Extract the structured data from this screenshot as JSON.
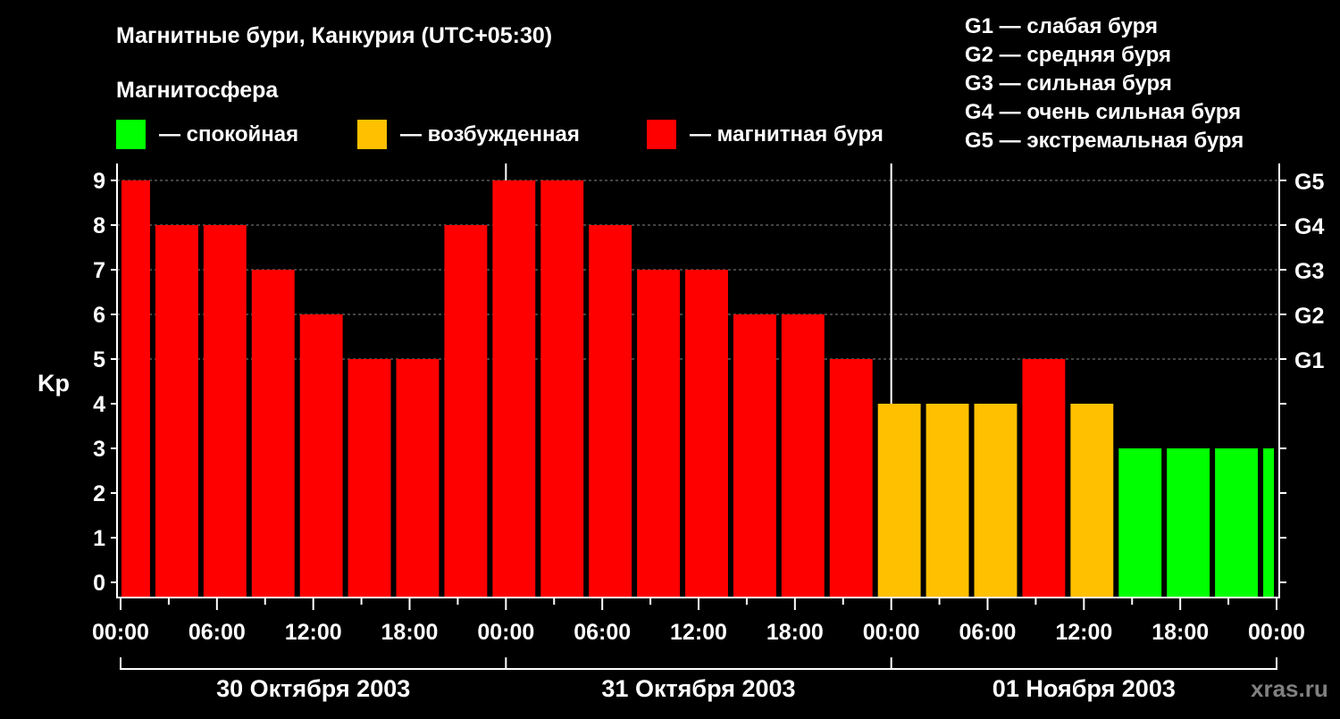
{
  "chart_data": {
    "type": "bar",
    "title": "Магнитные бури, Канкурия (UTC+05:30)",
    "legend_title": "Магнитосфера",
    "legend": [
      {
        "label": "— спокойная",
        "color": "#00ff00"
      },
      {
        "label": "— возбужденная",
        "color": "#ffc000"
      },
      {
        "label": "— магнитная буря",
        "color": "#ff0000"
      }
    ],
    "g_legend": [
      "G1 — слабая буря",
      "G2 — средняя буря",
      "G3 — сильная буря",
      "G4 — очень сильная буря",
      "G5 — экстремальная буря"
    ],
    "ylabel": "Kp",
    "ylim": [
      0,
      9
    ],
    "yticks": [
      "0",
      "1",
      "2",
      "3",
      "4",
      "5",
      "6",
      "7",
      "8",
      "9"
    ],
    "right_ticks": [
      {
        "kp": 5,
        "label": "G1"
      },
      {
        "kp": 6,
        "label": "G2"
      },
      {
        "kp": 7,
        "label": "G3"
      },
      {
        "kp": 8,
        "label": "G4"
      },
      {
        "kp": 9,
        "label": "G5"
      }
    ],
    "x_range_hours": [
      0,
      72
    ],
    "xticks": [
      "00:00",
      "06:00",
      "12:00",
      "18:00",
      "00:00",
      "06:00",
      "12:00",
      "18:00",
      "00:00",
      "06:00",
      "12:00",
      "18:00",
      "00:00"
    ],
    "days": [
      "30 Октября 2003",
      "31 Октября 2003",
      "01 Ноября 2003"
    ],
    "bars": [
      {
        "start": 0,
        "end": 2,
        "kp": 9
      },
      {
        "start": 2,
        "end": 5,
        "kp": 8
      },
      {
        "start": 5,
        "end": 8,
        "kp": 8
      },
      {
        "start": 8,
        "end": 11,
        "kp": 7
      },
      {
        "start": 11,
        "end": 14,
        "kp": 6
      },
      {
        "start": 14,
        "end": 17,
        "kp": 5
      },
      {
        "start": 17,
        "end": 20,
        "kp": 5
      },
      {
        "start": 20,
        "end": 23,
        "kp": 8
      },
      {
        "start": 23,
        "end": 26,
        "kp": 9
      },
      {
        "start": 26,
        "end": 29,
        "kp": 9
      },
      {
        "start": 29,
        "end": 32,
        "kp": 8
      },
      {
        "start": 32,
        "end": 35,
        "kp": 7
      },
      {
        "start": 35,
        "end": 38,
        "kp": 7
      },
      {
        "start": 38,
        "end": 41,
        "kp": 6
      },
      {
        "start": 41,
        "end": 44,
        "kp": 6
      },
      {
        "start": 44,
        "end": 47,
        "kp": 5
      },
      {
        "start": 47,
        "end": 50,
        "kp": 4
      },
      {
        "start": 50,
        "end": 53,
        "kp": 4
      },
      {
        "start": 53,
        "end": 56,
        "kp": 4
      },
      {
        "start": 56,
        "end": 59,
        "kp": 5
      },
      {
        "start": 59,
        "end": 62,
        "kp": 4
      },
      {
        "start": 62,
        "end": 65,
        "kp": 3
      },
      {
        "start": 65,
        "end": 68,
        "kp": 3
      },
      {
        "start": 68,
        "end": 71,
        "kp": 3
      },
      {
        "start": 71,
        "end": 72,
        "kp": 3
      }
    ],
    "grid": "dashed at G levels"
  },
  "watermark": "xras.ru"
}
